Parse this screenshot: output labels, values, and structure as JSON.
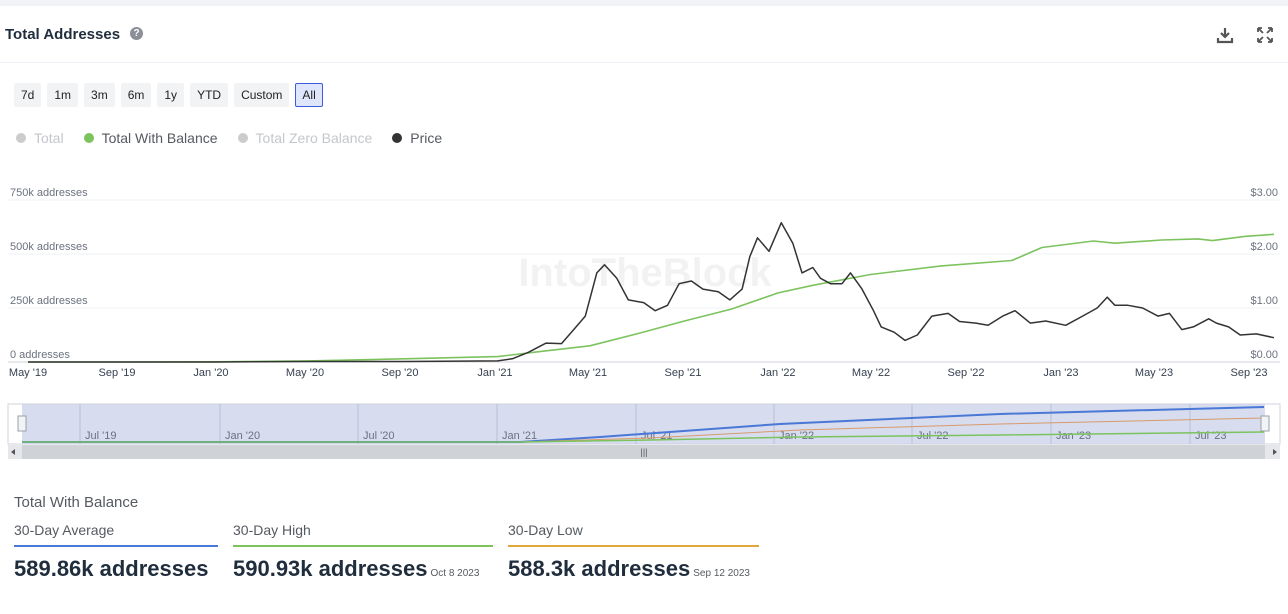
{
  "header": {
    "title": "Total Addresses",
    "help_glyph": "?"
  },
  "ranges": [
    "7d",
    "1m",
    "3m",
    "6m",
    "1y",
    "YTD",
    "Custom",
    "All"
  ],
  "active_range": "All",
  "legend": [
    {
      "label": "Total",
      "color": "#cccccc",
      "active": false
    },
    {
      "label": "Total With Balance",
      "color": "#7cc35e",
      "active": true
    },
    {
      "label": "Total Zero Balance",
      "color": "#cccccc",
      "active": false
    },
    {
      "label": "Price",
      "color": "#333333",
      "active": true
    }
  ],
  "watermark": "IntoTheBlock",
  "chart_data": {
    "type": "line",
    "x_ticks": [
      "May '19",
      "Sep '19",
      "Jan '20",
      "May '20",
      "Sep '20",
      "Jan '21",
      "May '21",
      "Sep '21",
      "Jan '22",
      "May '22",
      "Sep '22",
      "Jan '23",
      "May '23",
      "Sep '23"
    ],
    "y_left_ticks": [
      "750k addresses",
      "500k addresses",
      "250k addresses",
      "0 addresses"
    ],
    "y_left_range": [
      0,
      750000
    ],
    "y_right_ticks": [
      "$3.00",
      "$2.00",
      "$1.00",
      "$0.00"
    ],
    "y_right_range": [
      0,
      3
    ],
    "x_range": [
      "2019-05-01",
      "2023-10-08"
    ],
    "series": [
      {
        "name": "Total With Balance",
        "axis": "left",
        "color": "#7cc35e",
        "points": [
          [
            "2019-05-01",
            0
          ],
          [
            "2019-09-01",
            0
          ],
          [
            "2020-01-01",
            1000
          ],
          [
            "2020-05-01",
            5000
          ],
          [
            "2020-09-01",
            15000
          ],
          [
            "2021-01-01",
            25000
          ],
          [
            "2021-03-01",
            50000
          ],
          [
            "2021-05-01",
            75000
          ],
          [
            "2021-07-01",
            130000
          ],
          [
            "2021-09-01",
            190000
          ],
          [
            "2021-11-01",
            245000
          ],
          [
            "2022-01-01",
            320000
          ],
          [
            "2022-02-15",
            355000
          ],
          [
            "2022-05-01",
            405000
          ],
          [
            "2022-08-01",
            445000
          ],
          [
            "2022-11-01",
            470000
          ],
          [
            "2022-12-10",
            530000
          ],
          [
            "2023-02-15",
            560000
          ],
          [
            "2023-03-15",
            550000
          ],
          [
            "2023-05-15",
            565000
          ],
          [
            "2023-07-01",
            570000
          ],
          [
            "2023-07-20",
            562000
          ],
          [
            "2023-09-01",
            582000
          ],
          [
            "2023-10-08",
            591000
          ]
        ]
      },
      {
        "name": "Price",
        "axis": "right",
        "color": "#333333",
        "points": [
          [
            "2019-05-01",
            0.0
          ],
          [
            "2019-09-01",
            0.0
          ],
          [
            "2020-01-01",
            0.0
          ],
          [
            "2020-05-01",
            0.01
          ],
          [
            "2020-09-01",
            0.01
          ],
          [
            "2021-01-01",
            0.02
          ],
          [
            "2021-01-20",
            0.06
          ],
          [
            "2021-02-10",
            0.18
          ],
          [
            "2021-03-05",
            0.35
          ],
          [
            "2021-03-25",
            0.34
          ],
          [
            "2021-04-10",
            0.6
          ],
          [
            "2021-04-25",
            0.85
          ],
          [
            "2021-05-10",
            1.65
          ],
          [
            "2021-05-20",
            1.8
          ],
          [
            "2021-06-05",
            1.55
          ],
          [
            "2021-06-20",
            1.15
          ],
          [
            "2021-07-10",
            1.1
          ],
          [
            "2021-07-25",
            0.95
          ],
          [
            "2021-08-10",
            1.05
          ],
          [
            "2021-08-25",
            1.45
          ],
          [
            "2021-09-10",
            1.5
          ],
          [
            "2021-09-25",
            1.35
          ],
          [
            "2021-10-15",
            1.3
          ],
          [
            "2021-10-30",
            1.15
          ],
          [
            "2021-11-15",
            1.35
          ],
          [
            "2021-11-25",
            1.95
          ],
          [
            "2021-12-05",
            2.3
          ],
          [
            "2021-12-20",
            2.05
          ],
          [
            "2022-01-05",
            2.58
          ],
          [
            "2022-01-20",
            2.2
          ],
          [
            "2022-02-01",
            1.65
          ],
          [
            "2022-02-15",
            1.75
          ],
          [
            "2022-02-25",
            1.55
          ],
          [
            "2022-03-10",
            1.45
          ],
          [
            "2022-03-25",
            1.45
          ],
          [
            "2022-04-05",
            1.65
          ],
          [
            "2022-04-20",
            1.35
          ],
          [
            "2022-05-05",
            0.95
          ],
          [
            "2022-05-15",
            0.65
          ],
          [
            "2022-06-01",
            0.55
          ],
          [
            "2022-06-15",
            0.4
          ],
          [
            "2022-07-01",
            0.5
          ],
          [
            "2022-07-20",
            0.85
          ],
          [
            "2022-08-10",
            0.9
          ],
          [
            "2022-08-25",
            0.75
          ],
          [
            "2022-09-15",
            0.72
          ],
          [
            "2022-10-01",
            0.68
          ],
          [
            "2022-10-20",
            0.85
          ],
          [
            "2022-11-05",
            0.95
          ],
          [
            "2022-11-25",
            0.72
          ],
          [
            "2022-12-15",
            0.76
          ],
          [
            "2023-01-10",
            0.68
          ],
          [
            "2023-02-01",
            0.85
          ],
          [
            "2023-02-20",
            1.0
          ],
          [
            "2023-03-05",
            1.2
          ],
          [
            "2023-03-15",
            1.05
          ],
          [
            "2023-04-01",
            1.05
          ],
          [
            "2023-04-20",
            1.0
          ],
          [
            "2023-05-10",
            0.85
          ],
          [
            "2023-05-25",
            0.9
          ],
          [
            "2023-06-10",
            0.6
          ],
          [
            "2023-06-25",
            0.65
          ],
          [
            "2023-07-15",
            0.8
          ],
          [
            "2023-07-25",
            0.72
          ],
          [
            "2023-08-10",
            0.65
          ],
          [
            "2023-08-25",
            0.5
          ],
          [
            "2023-09-15",
            0.52
          ],
          [
            "2023-10-08",
            0.45
          ]
        ]
      }
    ]
  },
  "navigator": {
    "labels": [
      "Jul '19",
      "Jan '20",
      "Jul '20",
      "Jan '21",
      "Jul '21",
      "Jan '22",
      "Jul '22",
      "Jan '23",
      "Jul '23"
    ],
    "handle_glyph": "|||"
  },
  "stats": {
    "title": "Total With Balance",
    "items": [
      {
        "label": "30-Day Average",
        "value": "589.86k addresses",
        "date": "",
        "color": "#4a78d6"
      },
      {
        "label": "30-Day High",
        "value": "590.93k addresses",
        "date": "Oct 8 2023",
        "color": "#7cc35e"
      },
      {
        "label": "30-Day Low",
        "value": "588.3k addresses",
        "date": "Sep 12 2023",
        "color": "#e0a83a"
      }
    ]
  }
}
